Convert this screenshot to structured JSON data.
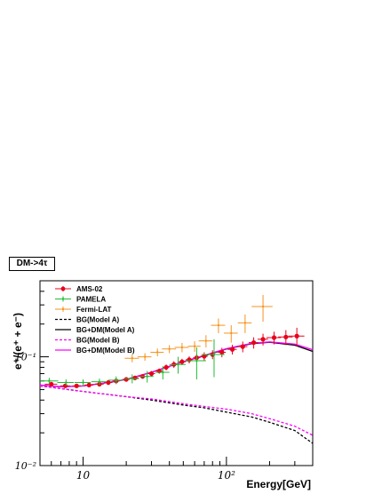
{
  "tag": {
    "label": "DM->4τ"
  },
  "chart_data": {
    "type": "scatter",
    "xlabel": "Energy[GeV]",
    "ylabel": "e⁺/(e⁺ + e⁻)",
    "xscale": "log",
    "yscale": "log",
    "xlim": [
      5,
      400
    ],
    "ylim": [
      0.01,
      0.5
    ],
    "x_ticks": [
      {
        "value": 10,
        "label": "10"
      },
      {
        "value": 100,
        "label": "10²"
      }
    ],
    "y_ticks": [
      {
        "value": 0.01,
        "label": "10⁻²"
      },
      {
        "value": 0.1,
        "label": "10⁻¹"
      }
    ],
    "legend_position": "top-left",
    "series": [
      {
        "name": "AMS-02",
        "kind": "data",
        "color": "#e8001c",
        "marker": "circle",
        "points": [
          {
            "x": 6.0,
            "y": 0.056,
            "xerr": 0.6,
            "yerr": 0.002
          },
          {
            "x": 7.5,
            "y": 0.054,
            "xerr": 0.6,
            "yerr": 0.002
          },
          {
            "x": 9.0,
            "y": 0.054,
            "xerr": 0.6,
            "yerr": 0.002
          },
          {
            "x": 11,
            "y": 0.055,
            "xerr": 0.8,
            "yerr": 0.002
          },
          {
            "x": 13,
            "y": 0.056,
            "xerr": 0.9,
            "yerr": 0.002
          },
          {
            "x": 15,
            "y": 0.058,
            "xerr": 1.0,
            "yerr": 0.003
          },
          {
            "x": 17,
            "y": 0.06,
            "xerr": 1.0,
            "yerr": 0.003
          },
          {
            "x": 20,
            "y": 0.062,
            "xerr": 1.2,
            "yerr": 0.003
          },
          {
            "x": 23,
            "y": 0.064,
            "xerr": 1.4,
            "yerr": 0.003
          },
          {
            "x": 26,
            "y": 0.066,
            "xerr": 1.5,
            "yerr": 0.003
          },
          {
            "x": 30,
            "y": 0.07,
            "xerr": 1.8,
            "yerr": 0.004
          },
          {
            "x": 34,
            "y": 0.074,
            "xerr": 2.0,
            "yerr": 0.004
          },
          {
            "x": 38,
            "y": 0.08,
            "xerr": 2.0,
            "yerr": 0.005
          },
          {
            "x": 43,
            "y": 0.085,
            "xerr": 2.5,
            "yerr": 0.006
          },
          {
            "x": 49,
            "y": 0.09,
            "xerr": 3.0,
            "yerr": 0.006
          },
          {
            "x": 55,
            "y": 0.094,
            "xerr": 3.0,
            "yerr": 0.007
          },
          {
            "x": 62,
            "y": 0.098,
            "xerr": 3.5,
            "yerr": 0.008
          },
          {
            "x": 70,
            "y": 0.101,
            "xerr": 4.0,
            "yerr": 0.009
          },
          {
            "x": 80,
            "y": 0.105,
            "xerr": 5.0,
            "yerr": 0.01
          },
          {
            "x": 93,
            "y": 0.11,
            "xerr": 6.0,
            "yerr": 0.011
          },
          {
            "x": 110,
            "y": 0.117,
            "xerr": 8.0,
            "yerr": 0.012
          },
          {
            "x": 130,
            "y": 0.124,
            "xerr": 10,
            "yerr": 0.014
          },
          {
            "x": 155,
            "y": 0.135,
            "xerr": 12,
            "yerr": 0.016
          },
          {
            "x": 180,
            "y": 0.145,
            "xerr": 15,
            "yerr": 0.018
          },
          {
            "x": 215,
            "y": 0.15,
            "xerr": 25,
            "yerr": 0.02
          },
          {
            "x": 260,
            "y": 0.152,
            "xerr": 30,
            "yerr": 0.024
          },
          {
            "x": 310,
            "y": 0.155,
            "xerr": 40,
            "yerr": 0.03
          }
        ]
      },
      {
        "name": "PAMELA",
        "kind": "data",
        "color": "#22bb33",
        "marker": "cross",
        "points": [
          {
            "x": 5.8,
            "y": 0.06,
            "xerr": 0.9,
            "yerr": 0.004
          },
          {
            "x": 7.6,
            "y": 0.058,
            "xerr": 1.0,
            "yerr": 0.004
          },
          {
            "x": 10,
            "y": 0.058,
            "xerr": 1.3,
            "yerr": 0.004
          },
          {
            "x": 13,
            "y": 0.059,
            "xerr": 1.6,
            "yerr": 0.004
          },
          {
            "x": 17,
            "y": 0.061,
            "xerr": 2.0,
            "yerr": 0.005
          },
          {
            "x": 22,
            "y": 0.063,
            "xerr": 2.5,
            "yerr": 0.006
          },
          {
            "x": 28,
            "y": 0.066,
            "xerr": 3.0,
            "yerr": 0.008
          },
          {
            "x": 36,
            "y": 0.072,
            "xerr": 4.0,
            "yerr": 0.01
          },
          {
            "x": 46,
            "y": 0.085,
            "xerr": 6.0,
            "yerr": 0.015
          },
          {
            "x": 62,
            "y": 0.092,
            "xerr": 10,
            "yerr": 0.03
          },
          {
            "x": 82,
            "y": 0.105,
            "xerr": 15,
            "yerr": 0.04
          }
        ]
      },
      {
        "name": "Fermi-LAT",
        "kind": "data",
        "color": "#f7931e",
        "marker": "cross",
        "points": [
          {
            "x": 22,
            "y": 0.097,
            "xerr": 2.5,
            "yerr": 0.008
          },
          {
            "x": 27,
            "y": 0.1,
            "xerr": 3.0,
            "yerr": 0.008
          },
          {
            "x": 33,
            "y": 0.11,
            "xerr": 3.5,
            "yerr": 0.009
          },
          {
            "x": 40,
            "y": 0.118,
            "xerr": 4.5,
            "yerr": 0.01
          },
          {
            "x": 49,
            "y": 0.122,
            "xerr": 5.5,
            "yerr": 0.012
          },
          {
            "x": 60,
            "y": 0.125,
            "xerr": 6.0,
            "yerr": 0.014
          },
          {
            "x": 72,
            "y": 0.14,
            "xerr": 8.0,
            "yerr": 0.018
          },
          {
            "x": 88,
            "y": 0.195,
            "xerr": 10,
            "yerr": 0.03
          },
          {
            "x": 108,
            "y": 0.165,
            "xerr": 12,
            "yerr": 0.03
          },
          {
            "x": 135,
            "y": 0.205,
            "xerr": 15,
            "yerr": 0.04
          },
          {
            "x": 180,
            "y": 0.29,
            "xerr": 30,
            "yerr": 0.08
          }
        ]
      },
      {
        "name": "BG(Model A)",
        "kind": "line",
        "color": "#000000",
        "dash": true,
        "points": [
          {
            "x": 5,
            "y": 0.054
          },
          {
            "x": 7,
            "y": 0.051
          },
          {
            "x": 10,
            "y": 0.048
          },
          {
            "x": 15,
            "y": 0.045
          },
          {
            "x": 20,
            "y": 0.043
          },
          {
            "x": 30,
            "y": 0.04
          },
          {
            "x": 50,
            "y": 0.036
          },
          {
            "x": 70,
            "y": 0.034
          },
          {
            "x": 100,
            "y": 0.031
          },
          {
            "x": 150,
            "y": 0.028
          },
          {
            "x": 200,
            "y": 0.025
          },
          {
            "x": 300,
            "y": 0.021
          },
          {
            "x": 400,
            "y": 0.016
          }
        ]
      },
      {
        "name": "BG+DM(Model A)",
        "kind": "line",
        "color": "#000000",
        "dash": false,
        "points": [
          {
            "x": 5,
            "y": 0.055
          },
          {
            "x": 7,
            "y": 0.053
          },
          {
            "x": 10,
            "y": 0.054
          },
          {
            "x": 15,
            "y": 0.058
          },
          {
            "x": 20,
            "y": 0.062
          },
          {
            "x": 30,
            "y": 0.072
          },
          {
            "x": 50,
            "y": 0.09
          },
          {
            "x": 70,
            "y": 0.102
          },
          {
            "x": 100,
            "y": 0.118
          },
          {
            "x": 150,
            "y": 0.132
          },
          {
            "x": 200,
            "y": 0.136
          },
          {
            "x": 300,
            "y": 0.128
          },
          {
            "x": 400,
            "y": 0.112
          }
        ]
      },
      {
        "name": "BG(Model B)",
        "kind": "line",
        "color": "#ff00ff",
        "dash": true,
        "points": [
          {
            "x": 5,
            "y": 0.054
          },
          {
            "x": 7,
            "y": 0.051
          },
          {
            "x": 10,
            "y": 0.048
          },
          {
            "x": 15,
            "y": 0.045
          },
          {
            "x": 20,
            "y": 0.043
          },
          {
            "x": 30,
            "y": 0.041
          },
          {
            "x": 50,
            "y": 0.037
          },
          {
            "x": 70,
            "y": 0.035
          },
          {
            "x": 100,
            "y": 0.033
          },
          {
            "x": 150,
            "y": 0.03
          },
          {
            "x": 200,
            "y": 0.027
          },
          {
            "x": 300,
            "y": 0.023
          },
          {
            "x": 400,
            "y": 0.019
          }
        ]
      },
      {
        "name": "BG+DM(Model B)",
        "kind": "line",
        "color": "#ff00ff",
        "dash": false,
        "points": [
          {
            "x": 5,
            "y": 0.055
          },
          {
            "x": 7,
            "y": 0.053
          },
          {
            "x": 10,
            "y": 0.054
          },
          {
            "x": 15,
            "y": 0.058
          },
          {
            "x": 20,
            "y": 0.062
          },
          {
            "x": 30,
            "y": 0.072
          },
          {
            "x": 50,
            "y": 0.09
          },
          {
            "x": 70,
            "y": 0.103
          },
          {
            "x": 100,
            "y": 0.119
          },
          {
            "x": 150,
            "y": 0.133
          },
          {
            "x": 200,
            "y": 0.137
          },
          {
            "x": 300,
            "y": 0.131
          },
          {
            "x": 400,
            "y": 0.116
          }
        ]
      }
    ]
  }
}
